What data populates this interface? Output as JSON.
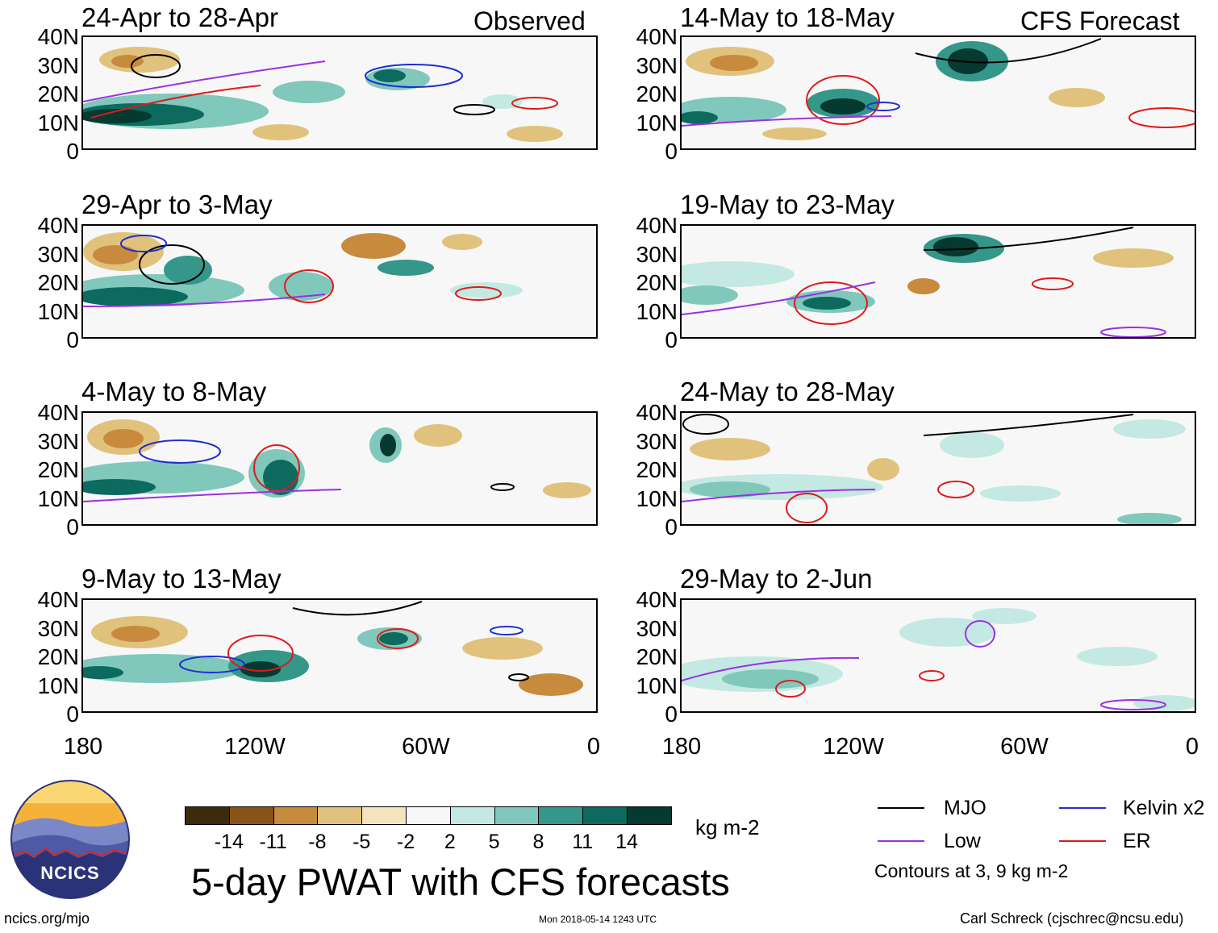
{
  "header": {
    "observed_label": "Observed",
    "forecast_label": "CFS Forecast"
  },
  "panels": {
    "obs": [
      {
        "title": "24-Apr to 28-Apr"
      },
      {
        "title": "29-Apr to 3-May"
      },
      {
        "title": "4-May to 8-May"
      },
      {
        "title": "9-May to 13-May"
      }
    ],
    "fcst": [
      {
        "title": "14-May to 18-May"
      },
      {
        "title": "19-May to 23-May"
      },
      {
        "title": "24-May to 28-May"
      },
      {
        "title": "29-May to 2-Jun"
      }
    ]
  },
  "axes": {
    "lat_labels": [
      "40N",
      "30N",
      "20N",
      "10N",
      "0"
    ],
    "lon_labels": [
      "180",
      "120W",
      "60W",
      "0"
    ]
  },
  "colorbar": {
    "colors": [
      "#3d2a0a",
      "#8a5416",
      "#c88a3c",
      "#e1c27d",
      "#f4e3bd",
      "#f7f7f7",
      "#c4e9e2",
      "#7fc8bb",
      "#35968a",
      "#0c6a5e",
      "#06392f"
    ],
    "labels": [
      "-14",
      "-11",
      "-8",
      "-5",
      "-2",
      "2",
      "5",
      "8",
      "11",
      "14"
    ],
    "units": "kg m-2"
  },
  "legend": {
    "items": [
      {
        "label": "MJO",
        "color": "#000000"
      },
      {
        "label": "Kelvin x2",
        "color": "#1f2fd0"
      },
      {
        "label": "Low",
        "color": "#9b30e0"
      },
      {
        "label": "ER",
        "color": "#e01a1a"
      }
    ],
    "note": "Contours at 3, 9 kg m-2"
  },
  "logo": {
    "text": "NCICS"
  },
  "main_title": "5-day PWAT with CFS forecasts",
  "footer": {
    "url": "ncics.org/mjo",
    "timestamp": "Mon 2018-05-14 1243 UTC",
    "credit": "Carl Schreck (cjschrec@ncsu.edu)"
  }
}
